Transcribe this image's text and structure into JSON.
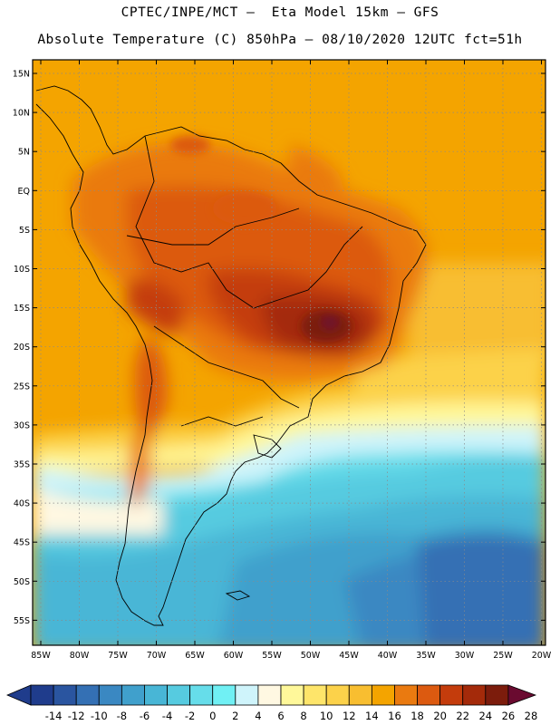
{
  "header": {
    "line1": "CPTEC/INPE/MCT –  Eta Model 15km – GFS",
    "line2": "Absolute Temperature (C) 850hPa – 08/10/2020 12UTC fct=51h"
  },
  "axes": {
    "lat_labels": [
      "15N",
      "10N",
      "5N",
      "EQ",
      "5S",
      "10S",
      "15S",
      "20S",
      "25S",
      "30S",
      "35S",
      "40S",
      "45S",
      "50S",
      "55S"
    ],
    "lon_labels": [
      "85W",
      "80W",
      "75W",
      "70W",
      "65W",
      "60W",
      "55W",
      "50W",
      "45W",
      "40W",
      "35W",
      "30W",
      "25W",
      "20W"
    ]
  },
  "colorbar": {
    "labels": [
      "-14",
      "-12",
      "-10",
      "-8",
      "-6",
      "-4",
      "-2",
      "0",
      "2",
      "4",
      "6",
      "8",
      "10",
      "12",
      "14",
      "16",
      "18",
      "20",
      "22",
      "24",
      "26",
      "28"
    ],
    "colors": [
      "#1f3c8c",
      "#2a55a0",
      "#3470b4",
      "#3a88c2",
      "#40a0cc",
      "#48b6d6",
      "#56cbe0",
      "#66ddea",
      "#70f0f4",
      "#cff4fb",
      "#fff8e2",
      "#fff89a",
      "#fee56a",
      "#fcd24a",
      "#f8be30",
      "#f4a400",
      "#ea7a10",
      "#dc5a10",
      "#c43c0c",
      "#a42a0a",
      "#7c1c0c",
      "#6a0a30"
    ]
  },
  "chart_data": {
    "type": "heatmap",
    "title": "Absolute Temperature (C) 850hPa",
    "variable": "Absolute Temperature (C)",
    "level": "850hPa",
    "model": "Eta Model 15km – GFS",
    "run": "08/10/2020 12UTC",
    "forecast": "fct=51h",
    "lon_range": [
      -86,
      -19
    ],
    "lat_range": [
      -58,
      16
    ],
    "scale_min": -14,
    "scale_max": 28,
    "scale_step": 2,
    "grid": true
  }
}
